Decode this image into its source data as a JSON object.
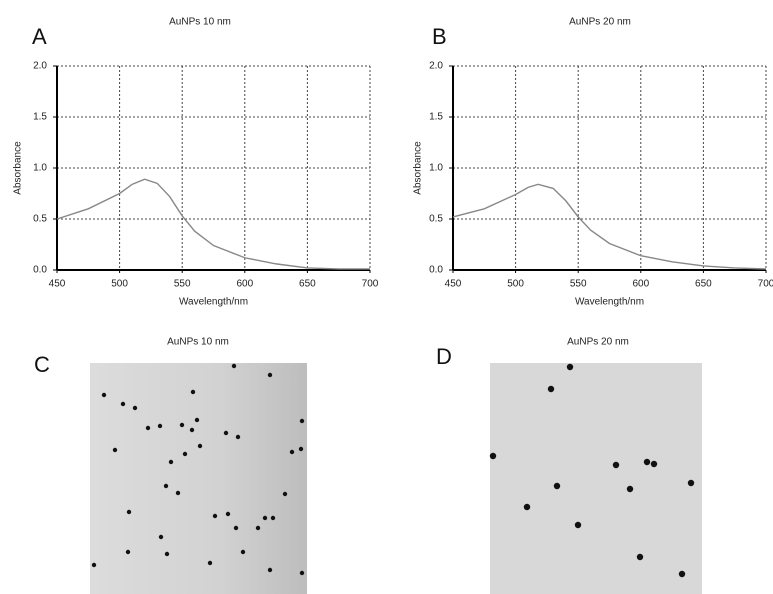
{
  "chart_data": [
    {
      "type": "line",
      "label": "A",
      "title": "AuNPs 10 nm",
      "xlabel": "Wavelength/nm",
      "ylabel": "Absorbance",
      "x": [
        450,
        475,
        500,
        510,
        520,
        530,
        540,
        550,
        560,
        575,
        600,
        625,
        650,
        675,
        700
      ],
      "values": [
        0.5,
        0.6,
        0.75,
        0.84,
        0.89,
        0.85,
        0.72,
        0.53,
        0.38,
        0.24,
        0.12,
        0.06,
        0.02,
        0.01,
        0.01
      ],
      "color": "#888888",
      "xlim": [
        450,
        700
      ],
      "xticks": [
        450,
        500,
        550,
        600,
        650,
        700
      ],
      "ylim": [
        0,
        2
      ],
      "yticks": [
        {
          "value": 0,
          "label": "0.0"
        },
        0.5,
        {
          "value": 1,
          "label": "1.0"
        },
        1.5,
        {
          "value": 2,
          "label": "2.0"
        }
      ],
      "grid": true
    },
    {
      "type": "line",
      "label": "B",
      "title": "AuNPs 20 nm",
      "xlabel": "Wavelength/nm",
      "ylabel": "Absorbance",
      "x": [
        450,
        475,
        500,
        510,
        518,
        530,
        540,
        550,
        560,
        575,
        600,
        625,
        650,
        675,
        700
      ],
      "values": [
        0.52,
        0.6,
        0.74,
        0.81,
        0.84,
        0.8,
        0.68,
        0.52,
        0.39,
        0.26,
        0.14,
        0.08,
        0.04,
        0.02,
        0.01
      ],
      "color": "#888888",
      "xlim": [
        450,
        700
      ],
      "xticks": [
        450,
        500,
        550,
        600,
        650,
        700
      ],
      "ylim": [
        0,
        2
      ],
      "yticks": [
        {
          "value": 0,
          "label": "0.0"
        },
        0.5,
        {
          "value": 1,
          "label": "1.0"
        },
        1.5,
        {
          "value": 2,
          "label": "2.0"
        }
      ],
      "grid": true
    }
  ],
  "images": [
    {
      "label": "C",
      "title": "AuNPs 10 nm"
    },
    {
      "label": "D",
      "title": "AuNPs 20 nm"
    }
  ]
}
